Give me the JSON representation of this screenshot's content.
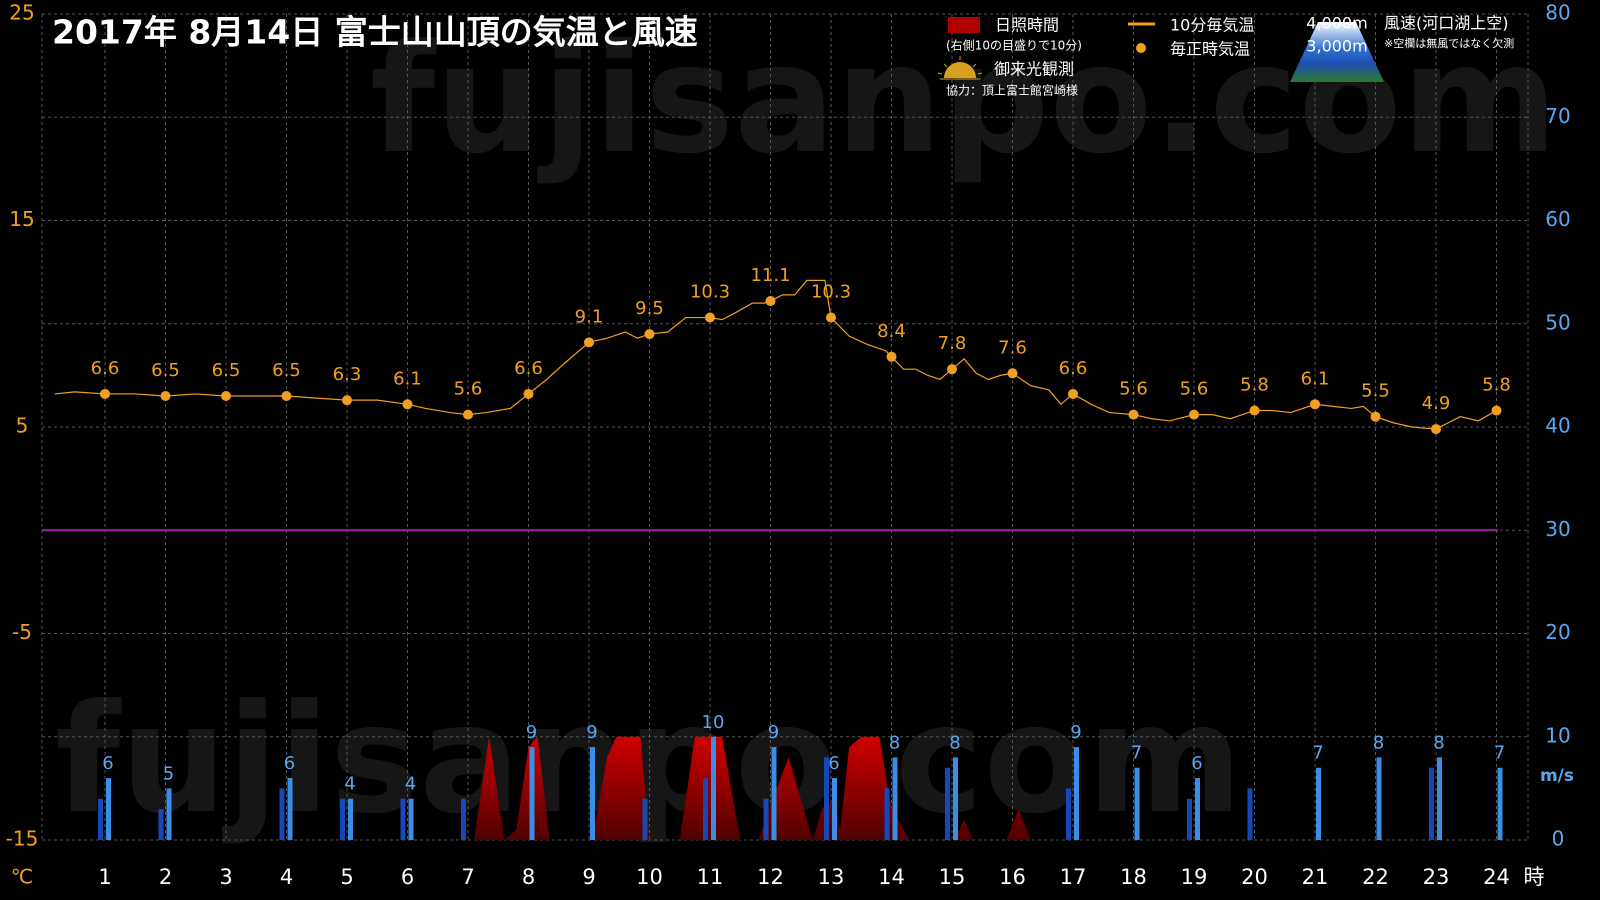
{
  "chart_data": {
    "type": "combo",
    "title": "2017年  8月14日   富士山山頂の気温と風速",
    "watermark": "fujisanpo.com",
    "y_unit": "℃",
    "y2_unit": "m/s",
    "x_unit": "時",
    "xlim": [
      0,
      24.5
    ],
    "xticks": [
      1,
      2,
      3,
      4,
      5,
      6,
      7,
      8,
      9,
      10,
      11,
      12,
      13,
      14,
      15,
      16,
      17,
      18,
      19,
      20,
      21,
      22,
      23,
      24
    ],
    "ylim": [
      -15,
      25
    ],
    "yticks": [
      -15,
      -5,
      5,
      15,
      25
    ],
    "y2lim": [
      0,
      80
    ],
    "y2ticks": [
      0,
      10,
      20,
      30,
      40,
      50,
      60,
      70,
      80
    ],
    "grid": true,
    "reference_line": {
      "value": 0,
      "color": "#a020a0"
    },
    "legend_notes": {
      "sunshine": "(右側10の目盛りで10分)",
      "wind": "風速(河口湖上空)",
      "missing": "※空欄は無風ではなく欠測",
      "sunrise": "御来光観測",
      "credit": "協力：頂上富士館宮崎様"
    },
    "series": [
      {
        "name": "日照時間",
        "type": "area",
        "axis": "y2",
        "color": "#c00000",
        "x": [
          7.1,
          7.35,
          7.6,
          7.8,
          8.0,
          8.15,
          8.35,
          9.05,
          9.3,
          9.45,
          9.85,
          10.0,
          10.5,
          10.75,
          11.2,
          11.5,
          11.8,
          12.1,
          12.3,
          12.5,
          12.7,
          12.85,
          13.05,
          13.15,
          13.3,
          13.5,
          13.8,
          14.0,
          14.2,
          14.3,
          15.05,
          15.2,
          15.35,
          15.9,
          16.1,
          16.3
        ],
        "values": [
          0,
          10,
          0,
          1,
          9,
          10,
          0,
          0,
          8,
          10,
          10,
          0,
          0,
          10,
          10,
          0,
          0,
          5,
          8,
          4,
          0,
          3,
          4,
          1,
          9,
          10,
          10,
          3,
          1,
          0,
          0,
          2,
          0,
          0,
          3,
          0
        ]
      },
      {
        "name": "10分毎気温",
        "type": "line",
        "color": "#f0a020",
        "x": [
          0.17,
          0.5,
          1,
          1.5,
          2,
          2.5,
          3,
          3.5,
          4,
          4.5,
          5,
          5.5,
          6,
          6.3,
          6.7,
          7,
          7.3,
          7.7,
          8,
          8.3,
          8.6,
          9,
          9.3,
          9.6,
          9.8,
          10,
          10.3,
          10.6,
          10.9,
          11,
          11.2,
          11.4,
          11.7,
          11.9,
          12,
          12.2,
          12.4,
          12.6,
          12.9,
          13,
          13.3,
          13.6,
          13.9,
          14,
          14.2,
          14.4,
          14.6,
          14.8,
          15,
          15.2,
          15.4,
          15.6,
          15.8,
          16,
          16.3,
          16.6,
          16.8,
          17,
          17.3,
          17.6,
          18,
          18.3,
          18.6,
          19,
          19.3,
          19.6,
          20,
          20.3,
          20.6,
          21,
          21.3,
          21.6,
          21.8,
          22,
          22.3,
          22.6,
          23,
          23.2,
          23.4,
          23.7,
          24
        ],
        "values": [
          6.6,
          6.7,
          6.6,
          6.6,
          6.5,
          6.6,
          6.5,
          6.5,
          6.5,
          6.4,
          6.3,
          6.3,
          6.1,
          5.9,
          5.7,
          5.6,
          5.7,
          5.9,
          6.6,
          7.3,
          8.1,
          9.1,
          9.3,
          9.6,
          9.3,
          9.5,
          9.6,
          10.3,
          10.3,
          10.3,
          10.2,
          10.5,
          11.0,
          11.0,
          11.1,
          11.4,
          11.4,
          12.1,
          12.1,
          10.3,
          9.4,
          9.0,
          8.7,
          8.4,
          7.8,
          7.8,
          7.5,
          7.3,
          7.8,
          8.3,
          7.6,
          7.3,
          7.5,
          7.6,
          7.0,
          6.8,
          6.1,
          6.6,
          6.1,
          5.7,
          5.6,
          5.4,
          5.3,
          5.6,
          5.6,
          5.4,
          5.8,
          5.8,
          5.7,
          6.1,
          6.0,
          5.9,
          6.0,
          5.5,
          5.2,
          5.0,
          4.9,
          5.2,
          5.5,
          5.3,
          5.8
        ]
      },
      {
        "name": "毎正時気温",
        "type": "scatter",
        "color": "#f0a020",
        "x": [
          1,
          2,
          3,
          4,
          5,
          6,
          7,
          8,
          9,
          10,
          11,
          12,
          13,
          14,
          15,
          16,
          17,
          18,
          19,
          20,
          21,
          22,
          23,
          24
        ],
        "values": [
          6.6,
          6.5,
          6.5,
          6.5,
          6.3,
          6.1,
          5.6,
          6.6,
          9.1,
          9.5,
          10.3,
          11.1,
          10.3,
          8.4,
          7.8,
          7.6,
          6.6,
          5.6,
          5.6,
          5.8,
          6.1,
          5.5,
          4.9,
          5.8
        ]
      },
      {
        "name": "4,000m",
        "type": "bar",
        "axis": "y2",
        "color": "#3a8ee6",
        "offset": 1,
        "x": [
          1,
          2,
          3,
          4,
          5,
          6,
          7,
          8,
          9,
          10,
          11,
          12,
          13,
          14,
          15,
          16,
          17,
          18,
          19,
          20,
          21,
          22,
          23,
          24
        ],
        "values": [
          6,
          5,
          null,
          6,
          4,
          4,
          null,
          9,
          9,
          null,
          10,
          9,
          6,
          8,
          8,
          null,
          9,
          7,
          6,
          null,
          7,
          8,
          8,
          7
        ]
      },
      {
        "name": "3,000m",
        "type": "bar",
        "axis": "y2",
        "color": "#1848b8",
        "offset": -1,
        "x": [
          1,
          2,
          3,
          4,
          5,
          6,
          7,
          8,
          9,
          10,
          11,
          12,
          13,
          14,
          15,
          16,
          17,
          18,
          19,
          20,
          21,
          22,
          23,
          24
        ],
        "values": [
          4,
          3,
          null,
          5,
          4,
          4,
          4,
          null,
          null,
          4,
          6,
          4,
          8,
          5,
          7,
          null,
          5,
          null,
          4,
          5,
          null,
          null,
          7,
          null
        ]
      }
    ]
  }
}
